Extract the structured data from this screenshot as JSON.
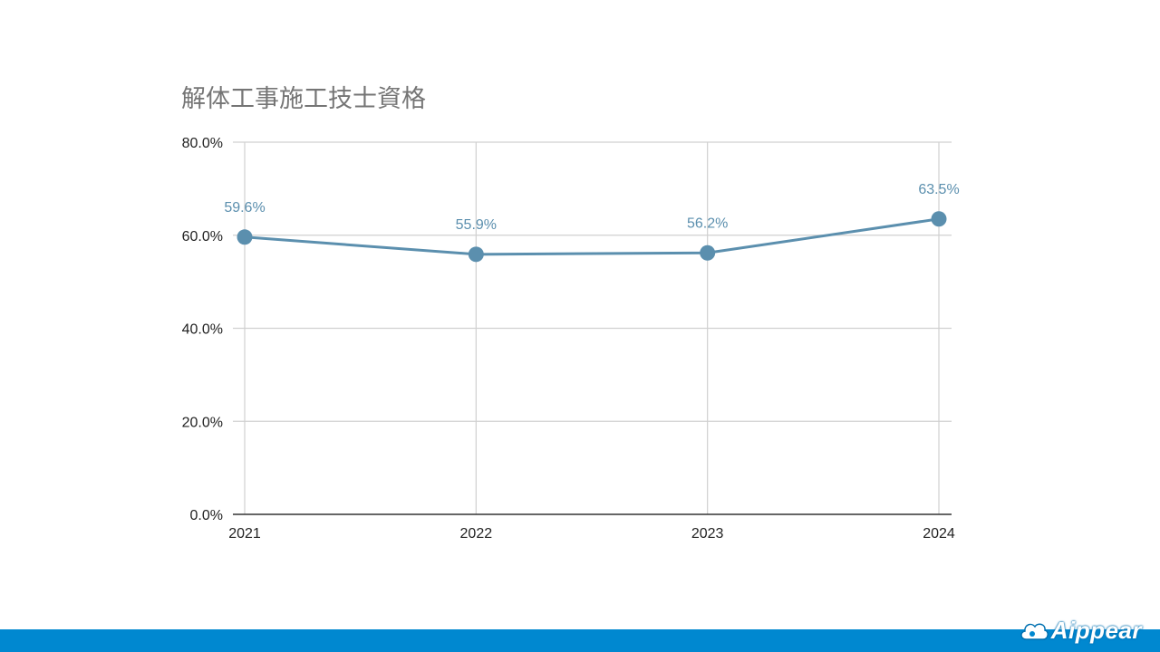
{
  "chart_data": {
    "type": "line",
    "title": "解体工事施工技士資格",
    "categories": [
      "2021",
      "2022",
      "2023",
      "2024"
    ],
    "series": [
      {
        "values": [
          59.6,
          55.9,
          56.2,
          63.5
        ],
        "labels": [
          "59.6%",
          "55.9%",
          "56.2%",
          "63.5%"
        ]
      }
    ],
    "y_ticks": [
      "0.0%",
      "20.0%",
      "40.0%",
      "60.0%",
      "80.0%"
    ],
    "ylim": [
      0,
      80
    ],
    "grid": true,
    "xlabel": "",
    "ylabel": "",
    "colors": {
      "line": "#5b8fae",
      "label": "#5b8fae",
      "grid": "#d0d0d0",
      "axis": "#333333",
      "title": "#757575"
    }
  },
  "footer": {
    "brand_name": "Aippear",
    "bar_color": "#0088d0"
  }
}
